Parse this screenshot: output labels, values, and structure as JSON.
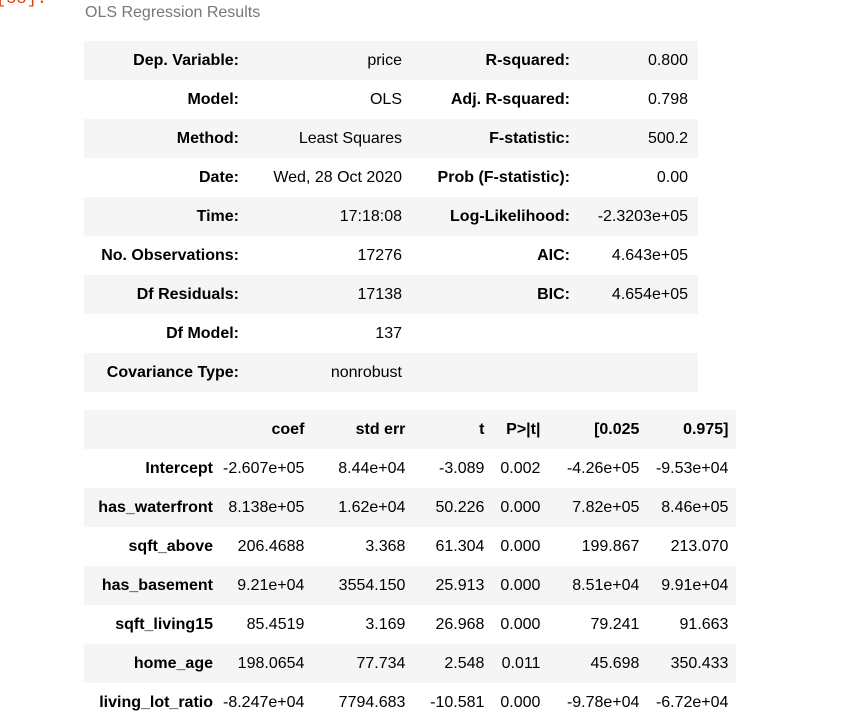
{
  "cell_prompt": "[58]:",
  "caption": "OLS Regression Results",
  "info_table": [
    [
      "Dep. Variable:",
      "price",
      "R-squared:",
      "0.800"
    ],
    [
      "Model:",
      "OLS",
      "Adj. R-squared:",
      "0.798"
    ],
    [
      "Method:",
      "Least Squares",
      "F-statistic:",
      "500.2"
    ],
    [
      "Date:",
      "Wed, 28 Oct 2020",
      "Prob (F-statistic):",
      "0.00"
    ],
    [
      "Time:",
      "17:18:08",
      "Log-Likelihood:",
      "-2.3203e+05"
    ],
    [
      "No. Observations:",
      "17276",
      "AIC:",
      "4.643e+05"
    ],
    [
      "Df Residuals:",
      "17138",
      "BIC:",
      "4.654e+05"
    ],
    [
      "Df Model:",
      "137",
      "",
      ""
    ],
    [
      "Covariance Type:",
      "nonrobust",
      "",
      ""
    ]
  ],
  "coef_table": {
    "headers": [
      "",
      "coef",
      "std err",
      "t",
      "P>|t|",
      "[0.025",
      "0.975]"
    ],
    "rows": [
      [
        "Intercept",
        "-2.607e+05",
        "8.44e+04",
        "-3.089",
        "0.002",
        "-4.26e+05",
        "-9.53e+04"
      ],
      [
        "has_waterfront",
        "8.138e+05",
        "1.62e+04",
        "50.226",
        "0.000",
        "7.82e+05",
        "8.46e+05"
      ],
      [
        "sqft_above",
        "206.4688",
        "3.368",
        "61.304",
        "0.000",
        "199.867",
        "213.070"
      ],
      [
        "has_basement",
        "9.21e+04",
        "3554.150",
        "25.913",
        "0.000",
        "8.51e+04",
        "9.91e+04"
      ],
      [
        "sqft_living15",
        "85.4519",
        "3.169",
        "26.968",
        "0.000",
        "79.241",
        "91.663"
      ],
      [
        "home_age",
        "198.0654",
        "77.734",
        "2.548",
        "0.011",
        "45.698",
        "350.433"
      ],
      [
        "living_lot_ratio",
        "-8.247e+04",
        "7794.683",
        "-10.581",
        "0.000",
        "-9.78e+04",
        "-6.72e+04"
      ]
    ]
  }
}
